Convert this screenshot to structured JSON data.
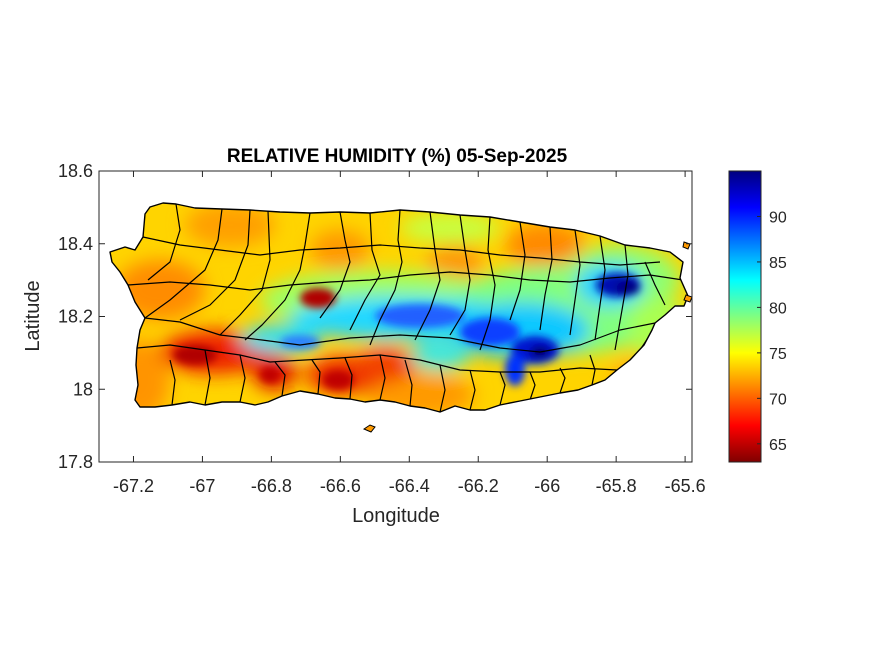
{
  "title": "RELATIVE HUMIDITY (%) 05-Sep-2025",
  "map": {
    "xlabel": "Longitude",
    "ylabel": "Latitude",
    "xlim": [
      -67.3,
      -65.58
    ],
    "ylim": [
      17.8,
      18.6
    ],
    "xticks": [
      -67.2,
      -67,
      -66.8,
      -66.6,
      -66.4,
      -66.2,
      -66,
      -65.8,
      -65.6
    ],
    "xtick_labels": [
      "-67.2",
      "-67",
      "-66.8",
      "-66.6",
      "-66.4",
      "-66.2",
      "-66",
      "-65.8",
      "-65.6"
    ],
    "yticks": [
      17.8,
      18,
      18.2,
      18.4,
      18.6
    ],
    "ytick_labels": [
      "17.8",
      "18",
      "18.2",
      "18.4",
      "18.6"
    ]
  },
  "colorbar": {
    "range": [
      63,
      95
    ],
    "ticks": [
      65,
      70,
      75,
      80,
      85,
      90
    ],
    "tick_labels": [
      "65",
      "70",
      "75",
      "80",
      "85",
      "90"
    ],
    "colormap": "jet"
  },
  "colors": {
    "outline": "#000000",
    "ocean": "#ffffff"
  }
}
